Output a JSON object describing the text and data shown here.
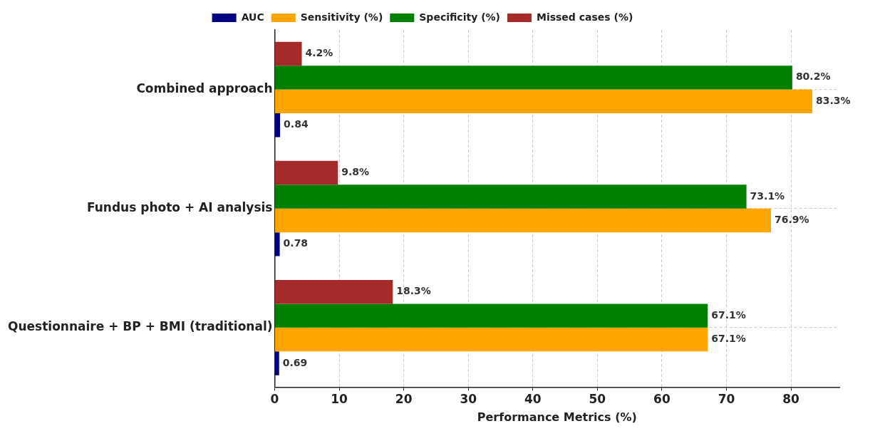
{
  "chart_data": {
    "type": "bar",
    "orientation": "horizontal",
    "xlabel": "Performance Metrics (%)",
    "categories": [
      "Combined approach",
      "Fundus photo + AI analysis",
      "Questionnaire + BP + BMI (traditional)"
    ],
    "series": [
      {
        "name": "AUC",
        "color": "#000080",
        "values": [
          0.84,
          0.78,
          0.69
        ],
        "value_labels": [
          "0.84",
          "0.78",
          "0.69"
        ]
      },
      {
        "name": "Sensitivity (%)",
        "color": "#ffa500",
        "values": [
          83.3,
          76.9,
          67.1
        ],
        "value_labels": [
          "83.3%",
          "76.9%",
          "67.1%"
        ]
      },
      {
        "name": "Specificity (%)",
        "color": "#008000",
        "values": [
          80.2,
          73.1,
          67.1
        ],
        "value_labels": [
          "80.2%",
          "73.1%",
          "67.1%"
        ]
      },
      {
        "name": "Missed cases (%)",
        "color": "#a52a2a",
        "values": [
          4.2,
          9.8,
          18.3
        ],
        "value_labels": [
          "4.2%",
          "9.8%",
          "18.3%"
        ]
      }
    ],
    "xlim": [
      0,
      87.5
    ],
    "xticks": [
      0,
      10,
      20,
      30,
      40,
      50,
      60,
      70,
      80
    ],
    "grid": true,
    "legend": "top"
  }
}
